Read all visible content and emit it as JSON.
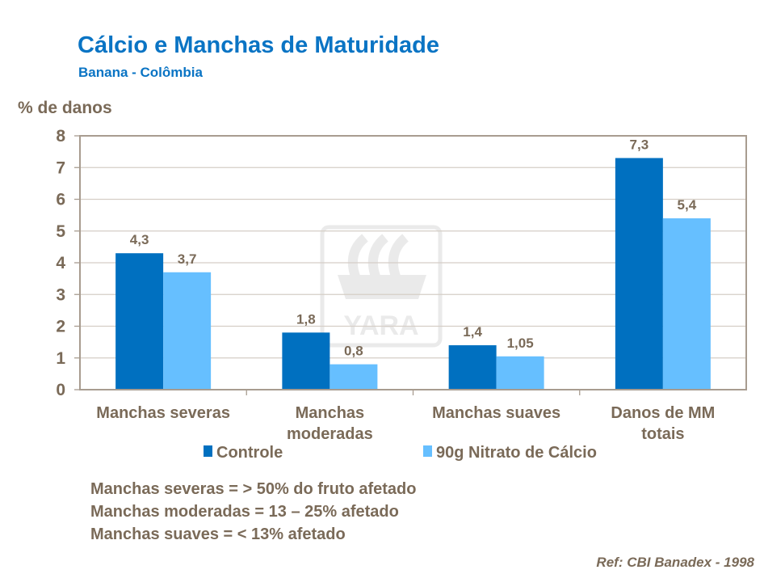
{
  "chart_data": {
    "type": "bar",
    "title": "Cálcio e Manchas de Maturidade",
    "subtitle": "Banana - Colômbia",
    "ylabel": "% de danos",
    "xlabel": "",
    "ylim": [
      0,
      8
    ],
    "yticks": [
      "0",
      "1",
      "2",
      "3",
      "4",
      "5",
      "6",
      "7",
      "8"
    ],
    "grid": true,
    "legend_position": "bottom",
    "categories": [
      [
        "Manchas severas"
      ],
      [
        "Manchas",
        "moderadas"
      ],
      [
        "Manchas suaves"
      ],
      [
        "Danos de MM",
        "totais"
      ]
    ],
    "series": [
      {
        "name": "Controle",
        "values": [
          4.3,
          1.8,
          1.4,
          7.3
        ],
        "labels": [
          "4,3",
          "1,8",
          "1,4",
          "7,3"
        ],
        "color": "#0070c0"
      },
      {
        "name": "90g Nitrato de Cálcio",
        "values": [
          3.7,
          0.8,
          1.05,
          5.4
        ],
        "labels": [
          "3,7",
          "0,8",
          "1,05",
          "5,4"
        ],
        "color": "#66bfff"
      }
    ]
  },
  "notes": [
    "Manchas severas = > 50% do fruto afetado",
    "Manchas moderadas = 13 – 25% afetado",
    "Manchas suaves = < 13% afetado"
  ],
  "reference": "Ref: CBI Banadex - 1998",
  "watermark": {
    "logo_text": "YARA",
    "icon": "yara-viking-ship-logo"
  }
}
